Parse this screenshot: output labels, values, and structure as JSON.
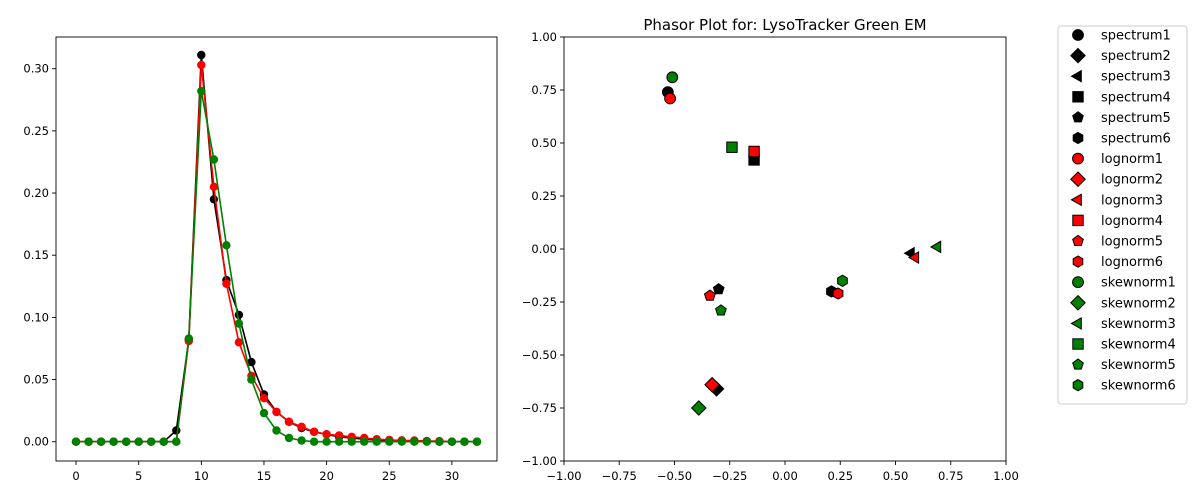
{
  "chart_data": [
    {
      "type": "line",
      "title": "",
      "xlabel": "",
      "ylabel": "",
      "xlim": [
        -1.6,
        33.6
      ],
      "ylim": [
        -0.0155,
        0.3255
      ],
      "xticks": [
        0,
        5,
        10,
        15,
        20,
        25,
        30
      ],
      "xtick_labels": [
        "0",
        "5",
        "10",
        "15",
        "20",
        "25",
        "30"
      ],
      "yticks": [
        0.0,
        0.05,
        0.1,
        0.15,
        0.2,
        0.25,
        0.3
      ],
      "ytick_labels": [
        "0.00",
        "0.05",
        "0.10",
        "0.15",
        "0.20",
        "0.25",
        "0.30"
      ],
      "grid": false,
      "x": [
        0,
        1,
        2,
        3,
        4,
        5,
        6,
        7,
        8,
        9,
        10,
        11,
        12,
        13,
        14,
        15,
        16,
        17,
        18,
        19,
        20,
        21,
        22,
        23,
        24,
        25,
        26,
        27,
        28,
        29,
        30,
        31,
        32
      ],
      "series": [
        {
          "color": "#000000",
          "values": [
            0,
            0,
            0,
            0,
            0,
            0,
            0,
            0,
            0.009,
            0.082,
            0.311,
            0.195,
            0.13,
            0.102,
            0.064,
            0.038,
            0.024,
            0.016,
            0.011,
            0.008,
            0.006,
            0.004,
            0.003,
            0.002,
            0.0015,
            0.001,
            0.001,
            0.0005,
            0.0005,
            0,
            0,
            0,
            0
          ]
        },
        {
          "color": "#ff0000",
          "values": [
            0,
            0,
            0,
            0,
            0,
            0,
            0,
            0,
            0,
            0.081,
            0.303,
            0.205,
            0.127,
            0.08,
            0.053,
            0.035,
            0.024,
            0.016,
            0.012,
            0.008,
            0.006,
            0.005,
            0.004,
            0.003,
            0.002,
            0.0015,
            0.001,
            0.001,
            0.0005,
            0.0005,
            0,
            0,
            0
          ]
        },
        {
          "color": "#008000",
          "values": [
            0,
            0,
            0,
            0,
            0,
            0,
            0,
            0,
            0,
            0.083,
            0.282,
            0.227,
            0.158,
            0.095,
            0.05,
            0.023,
            0.009,
            0.003,
            0.001,
            0,
            0,
            0,
            0,
            0,
            0,
            0,
            0,
            0,
            0,
            0,
            0,
            0,
            0
          ]
        }
      ]
    },
    {
      "type": "scatter",
      "title": "Phasor Plot for: LysoTracker Green EM",
      "xlabel": "",
      "ylabel": "",
      "xlim": [
        -1.0,
        1.0
      ],
      "ylim": [
        -1.0,
        1.0
      ],
      "xticks": [
        -1.0,
        -0.75,
        -0.5,
        -0.25,
        0.0,
        0.25,
        0.5,
        0.75,
        1.0
      ],
      "xtick_labels": [
        "−1.00",
        "−0.75",
        "−0.50",
        "−0.25",
        "0.00",
        "0.25",
        "0.50",
        "0.75",
        "1.00"
      ],
      "yticks": [
        -1.0,
        -0.75,
        -0.5,
        -0.25,
        0.0,
        0.25,
        0.5,
        0.75,
        1.0
      ],
      "ytick_labels": [
        "−1.00",
        "−0.75",
        "−0.50",
        "−0.25",
        "0.00",
        "0.25",
        "0.50",
        "0.75",
        "1.00"
      ],
      "grid": false,
      "legend_position": "outside-right",
      "series": [
        {
          "name": "spectrum1",
          "color": "#000000",
          "marker": "circle",
          "x": -0.53,
          "y": 0.74
        },
        {
          "name": "spectrum2",
          "color": "#000000",
          "marker": "diamond",
          "x": -0.31,
          "y": -0.66
        },
        {
          "name": "spectrum3",
          "color": "#000000",
          "marker": "triangle-left",
          "x": 0.57,
          "y": -0.02
        },
        {
          "name": "spectrum4",
          "color": "#000000",
          "marker": "square",
          "x": -0.14,
          "y": 0.42
        },
        {
          "name": "spectrum5",
          "color": "#000000",
          "marker": "pentagon",
          "x": -0.3,
          "y": -0.19
        },
        {
          "name": "spectrum6",
          "color": "#000000",
          "marker": "hexagon",
          "x": 0.21,
          "y": -0.2
        },
        {
          "name": "lognorm1",
          "color": "#ff0000",
          "marker": "circle",
          "x": -0.52,
          "y": 0.71
        },
        {
          "name": "lognorm2",
          "color": "#ff0000",
          "marker": "diamond",
          "x": -0.33,
          "y": -0.64
        },
        {
          "name": "lognorm3",
          "color": "#ff0000",
          "marker": "triangle-left",
          "x": 0.59,
          "y": -0.04
        },
        {
          "name": "lognorm4",
          "color": "#ff0000",
          "marker": "square",
          "x": -0.14,
          "y": 0.46
        },
        {
          "name": "lognorm5",
          "color": "#ff0000",
          "marker": "pentagon",
          "x": -0.34,
          "y": -0.22
        },
        {
          "name": "lognorm6",
          "color": "#ff0000",
          "marker": "hexagon",
          "x": 0.24,
          "y": -0.21
        },
        {
          "name": "skewnorm1",
          "color": "#008000",
          "marker": "circle",
          "x": -0.51,
          "y": 0.81
        },
        {
          "name": "skewnorm2",
          "color": "#008000",
          "marker": "diamond",
          "x": -0.39,
          "y": -0.75
        },
        {
          "name": "skewnorm3",
          "color": "#008000",
          "marker": "triangle-left",
          "x": 0.69,
          "y": 0.01
        },
        {
          "name": "skewnorm4",
          "color": "#008000",
          "marker": "square",
          "x": -0.24,
          "y": 0.48
        },
        {
          "name": "skewnorm5",
          "color": "#008000",
          "marker": "pentagon",
          "x": -0.29,
          "y": -0.29
        },
        {
          "name": "skewnorm6",
          "color": "#008000",
          "marker": "hexagon",
          "x": 0.26,
          "y": -0.15
        }
      ]
    }
  ]
}
